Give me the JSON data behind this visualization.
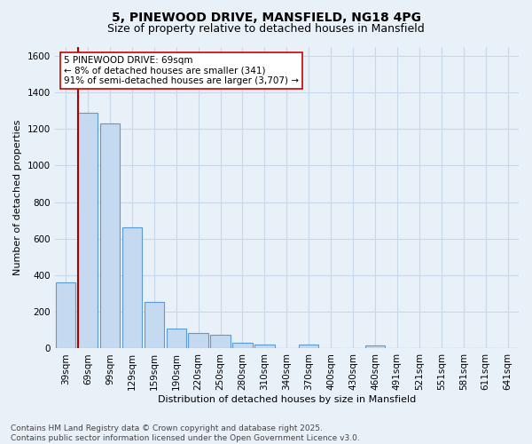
{
  "title_line1": "5, PINEWOOD DRIVE, MANSFIELD, NG18 4PG",
  "title_line2": "Size of property relative to detached houses in Mansfield",
  "xlabel": "Distribution of detached houses by size in Mansfield",
  "ylabel": "Number of detached properties",
  "categories": [
    "39sqm",
    "69sqm",
    "99sqm",
    "129sqm",
    "159sqm",
    "190sqm",
    "220sqm",
    "250sqm",
    "280sqm",
    "310sqm",
    "340sqm",
    "370sqm",
    "400sqm",
    "430sqm",
    "460sqm",
    "491sqm",
    "521sqm",
    "551sqm",
    "581sqm",
    "611sqm",
    "641sqm"
  ],
  "values": [
    360,
    1290,
    1230,
    660,
    255,
    110,
    85,
    75,
    30,
    20,
    0,
    20,
    0,
    0,
    15,
    0,
    0,
    0,
    0,
    0,
    0
  ],
  "bar_color": "#c5d9f0",
  "bar_edge_color": "#5b9bd5",
  "highlight_bar_index": 1,
  "vline_color": "#aa0000",
  "annotation_line1": "5 PINEWOOD DRIVE: 69sqm",
  "annotation_line2": "← 8% of detached houses are smaller (341)",
  "annotation_line3": "91% of semi-detached houses are larger (3,707) →",
  "annotation_box_color": "#ffffff",
  "annotation_box_edge_color": "#cc0000",
  "ylim": [
    0,
    1650
  ],
  "yticks": [
    0,
    200,
    400,
    600,
    800,
    1000,
    1200,
    1400,
    1600
  ],
  "footer_line1": "Contains HM Land Registry data © Crown copyright and database right 2025.",
  "footer_line2": "Contains public sector information licensed under the Open Government Licence v3.0.",
  "background_color": "#e8f0f8",
  "plot_background_color": "#e8f0f8",
  "grid_color": "#c8d8ea",
  "title_fontsize": 10,
  "subtitle_fontsize": 9,
  "axis_label_fontsize": 8,
  "tick_fontsize": 7.5,
  "annotation_fontsize": 7.5,
  "footer_fontsize": 6.5
}
